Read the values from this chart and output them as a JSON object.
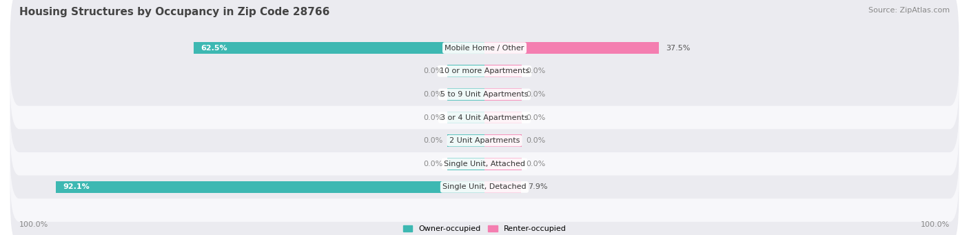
{
  "title": "Housing Structures by Occupancy in Zip Code 28766",
  "source": "Source: ZipAtlas.com",
  "categories": [
    "Single Unit, Detached",
    "Single Unit, Attached",
    "2 Unit Apartments",
    "3 or 4 Unit Apartments",
    "5 to 9 Unit Apartments",
    "10 or more Apartments",
    "Mobile Home / Other"
  ],
  "owner_pct": [
    92.1,
    0.0,
    0.0,
    0.0,
    0.0,
    0.0,
    62.5
  ],
  "renter_pct": [
    7.9,
    0.0,
    0.0,
    0.0,
    0.0,
    0.0,
    37.5
  ],
  "owner_color": "#3db8b2",
  "renter_color": "#f47eb0",
  "owner_label": "Owner-occupied",
  "renter_label": "Renter-occupied",
  "row_bg_colors": [
    "#ebebf0",
    "#f7f7fa"
  ],
  "axis_label_pct": "100.0%",
  "title_fontsize": 11,
  "source_fontsize": 8,
  "label_fontsize": 8,
  "cat_fontsize": 8,
  "bar_height": 0.52,
  "figsize": [
    14.06,
    3.41
  ],
  "dpi": 100,
  "zero_bar_width": 8.0,
  "xlim": 100
}
